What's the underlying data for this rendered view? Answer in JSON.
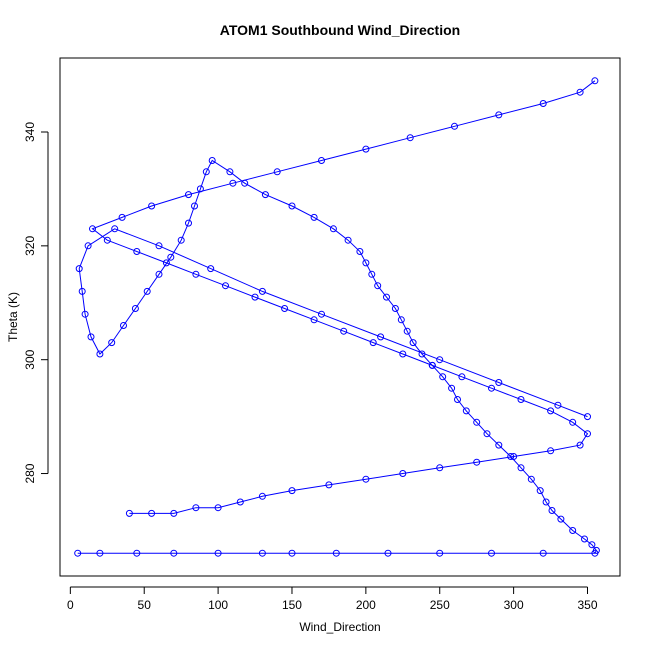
{
  "chart_data": {
    "type": "scatter",
    "title": "ATOM1 Southbound Wind_Direction",
    "xlabel": "Wind_Direction",
    "ylabel": "Theta (K)",
    "xlim": [
      -7,
      372
    ],
    "ylim": [
      262,
      353
    ],
    "x_ticks": [
      0,
      50,
      100,
      150,
      200,
      250,
      300,
      350
    ],
    "y_ticks": [
      280,
      300,
      320,
      340
    ],
    "grid": false,
    "legend": "none",
    "marker": "open-circle",
    "connected": true,
    "color": "#0000ff",
    "series": [
      {
        "x": [
          5,
          20,
          45,
          70,
          100,
          130,
          150,
          180,
          215,
          250,
          285,
          320,
          355,
          356,
          353,
          348,
          340,
          332,
          326,
          322,
          318,
          312,
          305,
          298,
          290,
          282,
          275,
          268,
          262,
          258,
          252,
          245,
          238,
          232,
          228,
          224,
          220,
          214,
          208,
          204,
          200,
          196,
          188,
          178,
          165,
          150,
          132,
          118,
          108,
          96,
          92,
          88,
          84,
          80,
          75,
          68,
          60,
          52,
          44,
          36,
          28,
          20,
          14,
          10,
          8,
          6,
          12,
          30,
          60,
          95,
          130,
          170,
          210,
          250,
          290,
          330,
          350
        ],
        "y": [
          266,
          266,
          266,
          266,
          266,
          266,
          266,
          266,
          266,
          266,
          266,
          266,
          266,
          266.5,
          267.5,
          268.5,
          270,
          272,
          273.5,
          275,
          277,
          279,
          281,
          283,
          285,
          287,
          289,
          291,
          293,
          295,
          297,
          299,
          301,
          303,
          305,
          307,
          309,
          311,
          313,
          315,
          317,
          319,
          321,
          323,
          325,
          327,
          329,
          331,
          333,
          335,
          333,
          330,
          327,
          324,
          321,
          318,
          315,
          312,
          309,
          306,
          303,
          301,
          304,
          308,
          312,
          316,
          320,
          323,
          320,
          316,
          312,
          308,
          304,
          300,
          296,
          292,
          290
        ]
      },
      {
        "x": [
          40,
          55,
          70,
          85,
          100,
          115,
          130,
          150,
          175,
          200,
          225,
          250,
          275,
          300,
          325,
          345,
          350,
          340,
          325,
          305,
          285,
          265,
          245,
          225,
          205,
          185,
          165,
          145,
          125,
          105,
          85,
          65,
          45,
          25,
          15,
          35,
          55,
          80,
          110,
          140,
          170,
          200,
          230,
          260,
          290,
          320,
          345,
          355
        ],
        "y": [
          273,
          273,
          273,
          274,
          274,
          275,
          276,
          277,
          278,
          279,
          280,
          281,
          282,
          283,
          284,
          285,
          287,
          289,
          291,
          293,
          295,
          297,
          299,
          301,
          303,
          305,
          307,
          309,
          311,
          313,
          315,
          317,
          319,
          321,
          323,
          325,
          327,
          329,
          331,
          333,
          335,
          337,
          339,
          341,
          343,
          345,
          347,
          349
        ]
      }
    ]
  }
}
